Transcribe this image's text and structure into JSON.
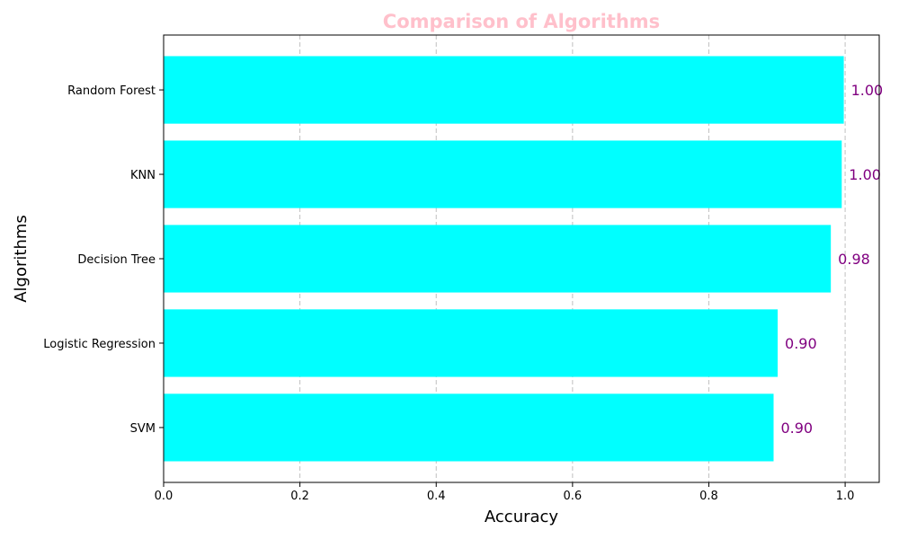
{
  "chart_data": {
    "type": "bar",
    "orientation": "horizontal",
    "title": "Comparison of Algorithms",
    "xlabel": "Accuracy",
    "ylabel": "Algorithms",
    "categories": [
      "SVM",
      "Logistic Regression",
      "Decision Tree",
      "KNN",
      "Random Forest"
    ],
    "values": [
      0.895,
      0.901,
      0.979,
      0.995,
      0.998
    ],
    "value_labels": [
      "0.90",
      "0.90",
      "0.98",
      "1.00",
      "1.00"
    ],
    "xlim": [
      0,
      1.05
    ],
    "xticks": [
      "0.0",
      "0.2",
      "0.4",
      "0.6",
      "0.8",
      "1.0"
    ],
    "grid": "x-axis dashed",
    "colors": {
      "bar": "#00ffff",
      "title": "#ffc0cb",
      "value_label": "#800080",
      "grid": "#c0c0c0"
    }
  }
}
